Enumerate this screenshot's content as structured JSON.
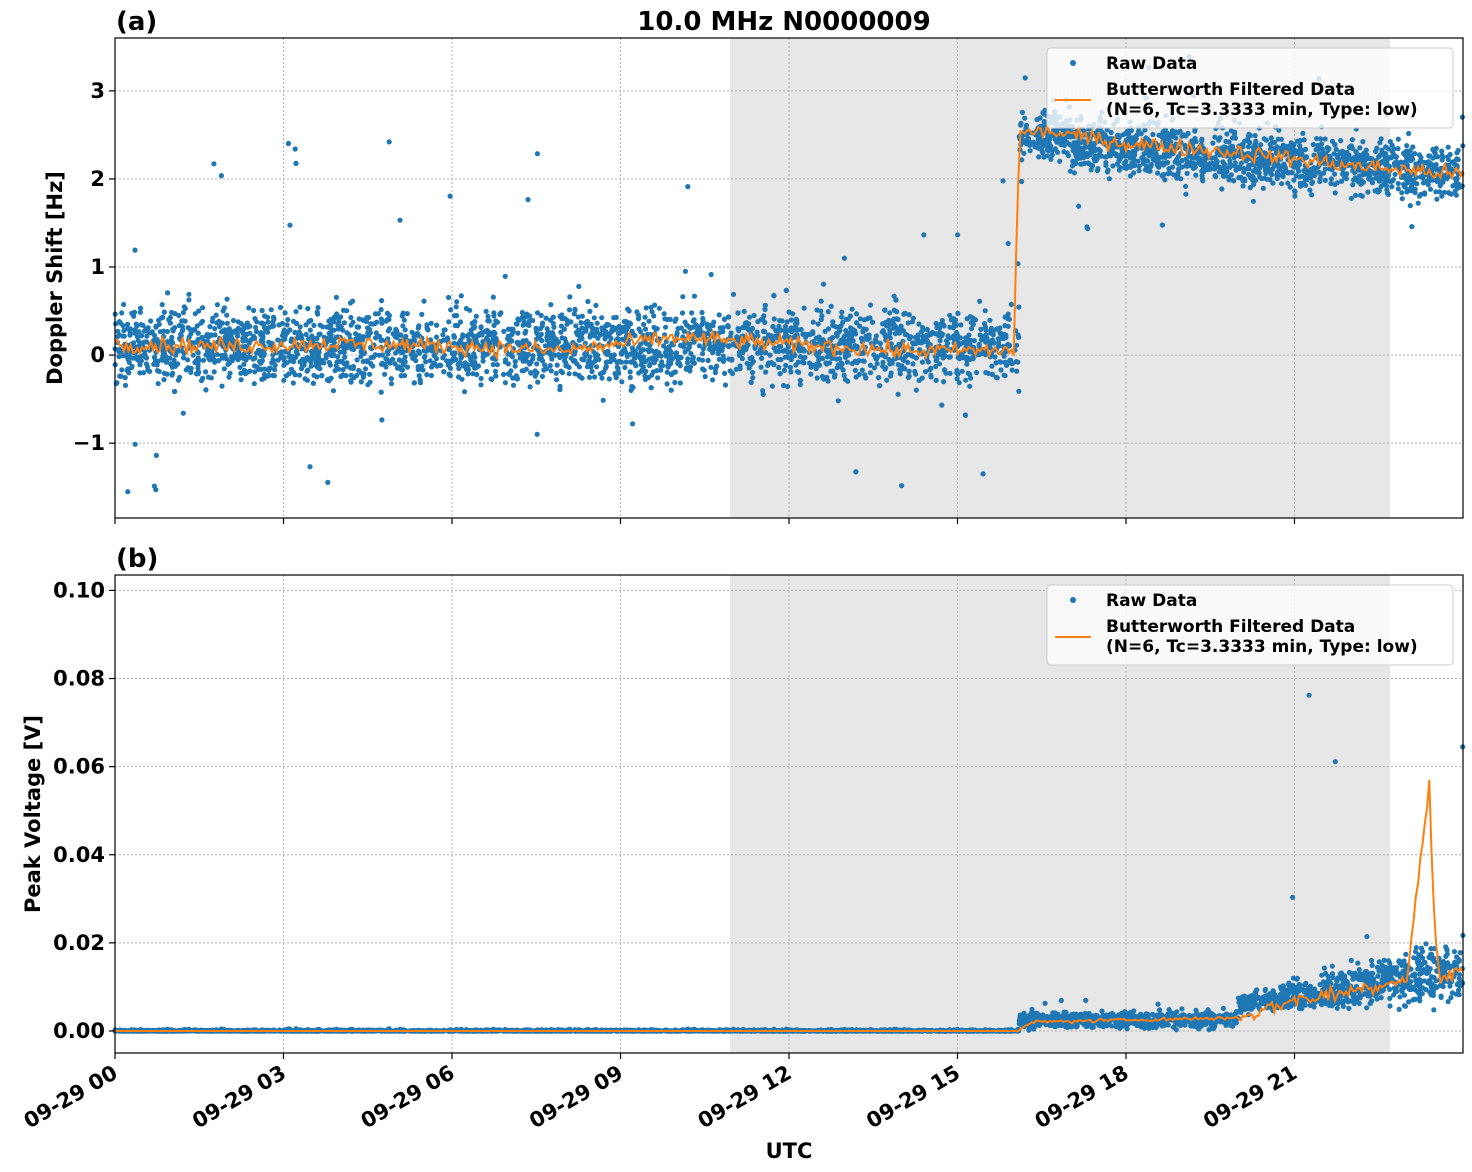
{
  "figure": {
    "title": "10.0 MHz N0000009",
    "xlabel": "UTC",
    "colors": {
      "raw": "#1f77b4",
      "filtered": "#ff7f0e",
      "shade": "#e7e7e7",
      "grid": "#b0b0b0"
    }
  },
  "chart_data": [
    {
      "type": "scatter",
      "panel_label": "(a)",
      "title": "10.0 MHz N0000009",
      "xlabel": "",
      "ylabel": "Doppler Shift [Hz]",
      "xlim": [
        "09-29 00:00",
        "09-29 24:00"
      ],
      "ylim": [
        -1.85,
        3.6
      ],
      "yticks": [
        -1,
        0,
        1,
        2,
        3
      ],
      "ytick_labels": [
        "−1",
        "0",
        "1",
        "2",
        "3"
      ],
      "xticks_hours": [
        0,
        3,
        6,
        9,
        12,
        15,
        18,
        21
      ],
      "xtick_labels": [
        "09-29 00",
        "09-29 03",
        "09-29 06",
        "09-29 09",
        "09-29 12",
        "09-29 15",
        "09-29 18",
        "09-29 21"
      ],
      "grid": true,
      "legend_position": "top-right",
      "shaded_span_hours": [
        10.95,
        22.7
      ],
      "series": [
        {
          "name": "Raw Data",
          "kind": "scatter",
          "segments": [
            {
              "x_hours": [
                0.0,
                16.1
              ],
              "center": 0.1,
              "spread": 0.75,
              "min": -1.6,
              "max": 2.45
            },
            {
              "x_hours": [
                16.1,
                17.0
              ],
              "center": 2.5,
              "spread": 0.5,
              "min": 1.8,
              "max": 3.3
            },
            {
              "x_hours": [
                17.0,
                24.0
              ],
              "center_start": 2.4,
              "center_end": 2.05,
              "spread": 0.55,
              "min": 1.4,
              "max": 3.4
            }
          ]
        },
        {
          "name": "Butterworth Filtered Data\n(N=6, Tc=3.3333 min, Type: low)",
          "kind": "line",
          "x_hours": [
            0,
            2,
            4,
            6,
            8,
            10,
            12,
            14,
            16.0,
            16.1,
            16.5,
            18,
            20,
            22,
            24
          ],
          "values": [
            0.12,
            0.1,
            0.13,
            0.1,
            0.05,
            0.2,
            0.12,
            0.05,
            0.05,
            2.5,
            2.55,
            2.4,
            2.3,
            2.15,
            2.05
          ]
        }
      ]
    },
    {
      "type": "scatter",
      "panel_label": "(b)",
      "title": "",
      "xlabel": "UTC",
      "ylabel": "Peak Voltage [V]",
      "xlim": [
        "09-29 00:00",
        "09-29 24:00"
      ],
      "ylim": [
        -0.005,
        0.1035
      ],
      "yticks": [
        0.0,
        0.02,
        0.04,
        0.06,
        0.08,
        0.1
      ],
      "ytick_labels": [
        "0.00",
        "0.02",
        "0.04",
        "0.06",
        "0.08",
        "0.10"
      ],
      "xticks_hours": [
        0,
        3,
        6,
        9,
        12,
        15,
        18,
        21
      ],
      "xtick_labels": [
        "09-29 00",
        "09-29 03",
        "09-29 06",
        "09-29 09",
        "09-29 12",
        "09-29 15",
        "09-29 18",
        "09-29 21"
      ],
      "grid": true,
      "legend_position": "top-right",
      "shaded_span_hours": [
        10.95,
        22.7
      ],
      "series": [
        {
          "name": "Raw Data",
          "kind": "scatter",
          "segments": [
            {
              "x_hours": [
                0.0,
                16.1
              ],
              "center": 0.0,
              "spread": 0.0005,
              "min": 0.0,
              "max": 0.0005
            },
            {
              "x_hours": [
                16.1,
                20.0
              ],
              "center": 0.0025,
              "spread": 0.003,
              "min": 0.0,
              "max": 0.007
            },
            {
              "x_hours": [
                20.0,
                24.0
              ],
              "center_start": 0.006,
              "center_end": 0.014,
              "spread": 0.015,
              "min": 0.002,
              "max": 0.098
            }
          ]
        },
        {
          "name": "Butterworth Filtered Data\n(N=6, Tc=3.3333 min, Type: low)",
          "kind": "line",
          "x_hours": [
            0,
            16.1,
            16.3,
            18,
            20,
            21,
            22,
            23,
            23.4,
            23.5,
            23.6,
            24
          ],
          "values": [
            0.0,
            0.0,
            0.002,
            0.0025,
            0.003,
            0.007,
            0.009,
            0.012,
            0.056,
            0.02,
            0.012,
            0.014
          ]
        }
      ]
    }
  ]
}
